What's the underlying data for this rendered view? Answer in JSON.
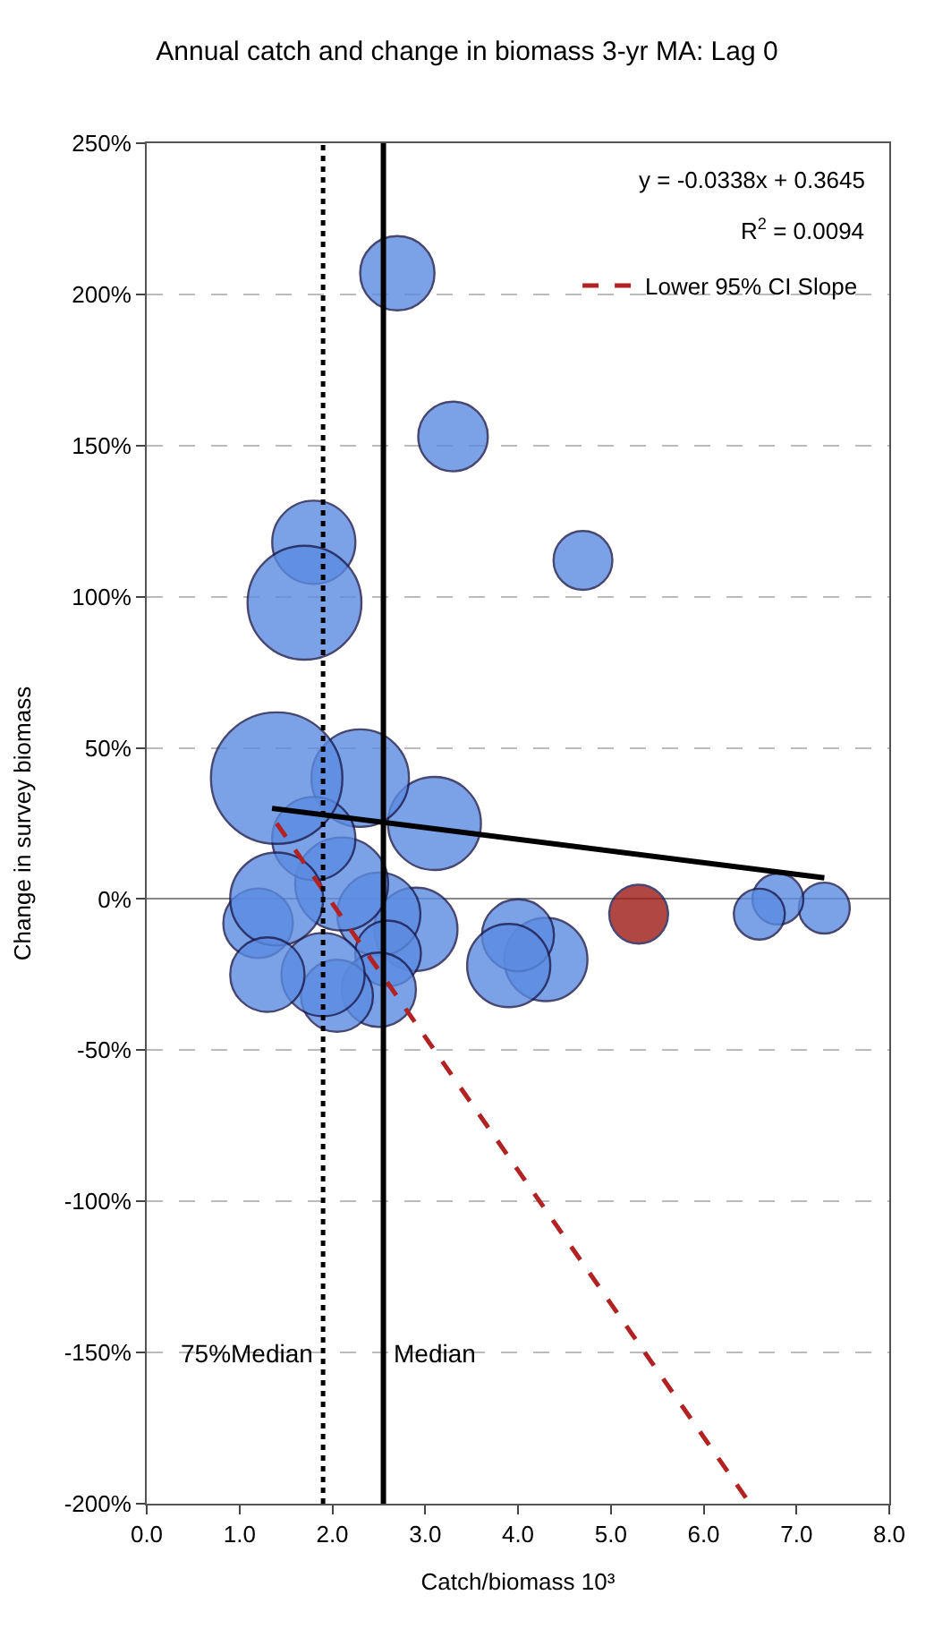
{
  "chart_data": {
    "type": "bubble",
    "title": "Annual catch and change in biomass 3-yr MA: Lag 0",
    "xlabel": "Catch/biomass 10³",
    "ylabel": "Change in survey biomass",
    "xlim": [
      0,
      8
    ],
    "xticks": [
      {
        "value": 0,
        "label": "0.0"
      },
      {
        "value": 1,
        "label": "1.0"
      },
      {
        "value": 2,
        "label": "2.0"
      },
      {
        "value": 3,
        "label": "3.0"
      },
      {
        "value": 4,
        "label": "4.0"
      },
      {
        "value": 5,
        "label": "5.0"
      },
      {
        "value": 6,
        "label": "6.0"
      },
      {
        "value": 7,
        "label": "7.0"
      },
      {
        "value": 8,
        "label": "8.0"
      }
    ],
    "ylim": [
      -200,
      250
    ],
    "yticks": [
      {
        "value": 250,
        "label": "250%"
      },
      {
        "value": 200,
        "label": "200%"
      },
      {
        "value": 150,
        "label": "150%"
      },
      {
        "value": 100,
        "label": "100%"
      },
      {
        "value": 50,
        "label": "50%"
      },
      {
        "value": 0,
        "label": "0%"
      },
      {
        "value": -50,
        "label": "-50%"
      },
      {
        "value": -100,
        "label": "-100%"
      },
      {
        "value": -150,
        "label": "-150%"
      },
      {
        "value": -200,
        "label": "-200%"
      }
    ],
    "grid": "y",
    "legend": "top right",
    "series": [
      {
        "x": [
          7.3,
          6.8,
          6.6,
          5.3,
          4.7,
          4.3,
          4.0,
          3.9,
          3.3,
          3.1,
          2.9,
          2.7,
          2.5,
          2.6,
          2.5,
          2.3,
          2.1,
          2.05,
          1.9,
          1.8,
          1.8,
          1.7,
          1.4,
          1.2,
          1.4,
          1.3
        ],
        "values": [
          -3,
          0,
          -5,
          -5,
          112,
          -20,
          -12,
          -22,
          153,
          25,
          -10,
          207,
          -5,
          -18,
          -30,
          40,
          5,
          -32,
          -25,
          20,
          118,
          98,
          40,
          -8,
          0,
          -25
        ],
        "sizes": [
          0.15,
          0.15,
          0.15,
          0.2,
          0.2,
          0.4,
          0.3,
          0.4,
          0.28,
          0.5,
          0.4,
          0.32,
          0.4,
          0.25,
          0.32,
          0.55,
          0.5,
          0.3,
          0.4,
          0.4,
          0.4,
          0.75,
          1,
          0.28,
          0.5,
          0.32
        ],
        "colors": [
          "#5b8be0",
          "#5b8be0",
          "#5b8be0",
          "#9e1a14",
          "#5b8be0",
          "#5b8be0",
          "#5b8be0",
          "#5b8be0",
          "#5b8be0",
          "#5b8be0",
          "#5b8be0",
          "#5b8be0",
          "#5b8be0",
          "#5b8be0",
          "#5b8be0",
          "#5b8be0",
          "#5b8be0",
          "#5b8be0",
          "#5b8be0",
          "#5b8be0",
          "#5b8be0",
          "#5b8be0",
          "#5b8be0",
          "#5b8be0",
          "#5b8be0",
          "#5b8be0"
        ]
      },
      {
        "type": "line",
        "x": [
          1.35,
          7.3
        ],
        "values": [
          30,
          7
        ],
        "color": "#000000",
        "line_style": "solid"
      },
      {
        "type": "line",
        "name": "Lower 95% CI Slope",
        "x": [
          1.4,
          6.5
        ],
        "values": [
          25,
          -200
        ],
        "color": "#b22222",
        "line_style": "dashed"
      }
    ],
    "ref_lines": [
      {
        "axis": "x",
        "value": 2.55,
        "label": "Median",
        "color": "#000000",
        "line_style": "solid"
      },
      {
        "axis": "x",
        "value": 1.9,
        "label": "75%Median",
        "color": "#000000",
        "line_style": "dotted"
      }
    ],
    "annotations": [
      "y = -0.0338x + 0.3645",
      "R$^{2}$ = 0.0094"
    ]
  }
}
